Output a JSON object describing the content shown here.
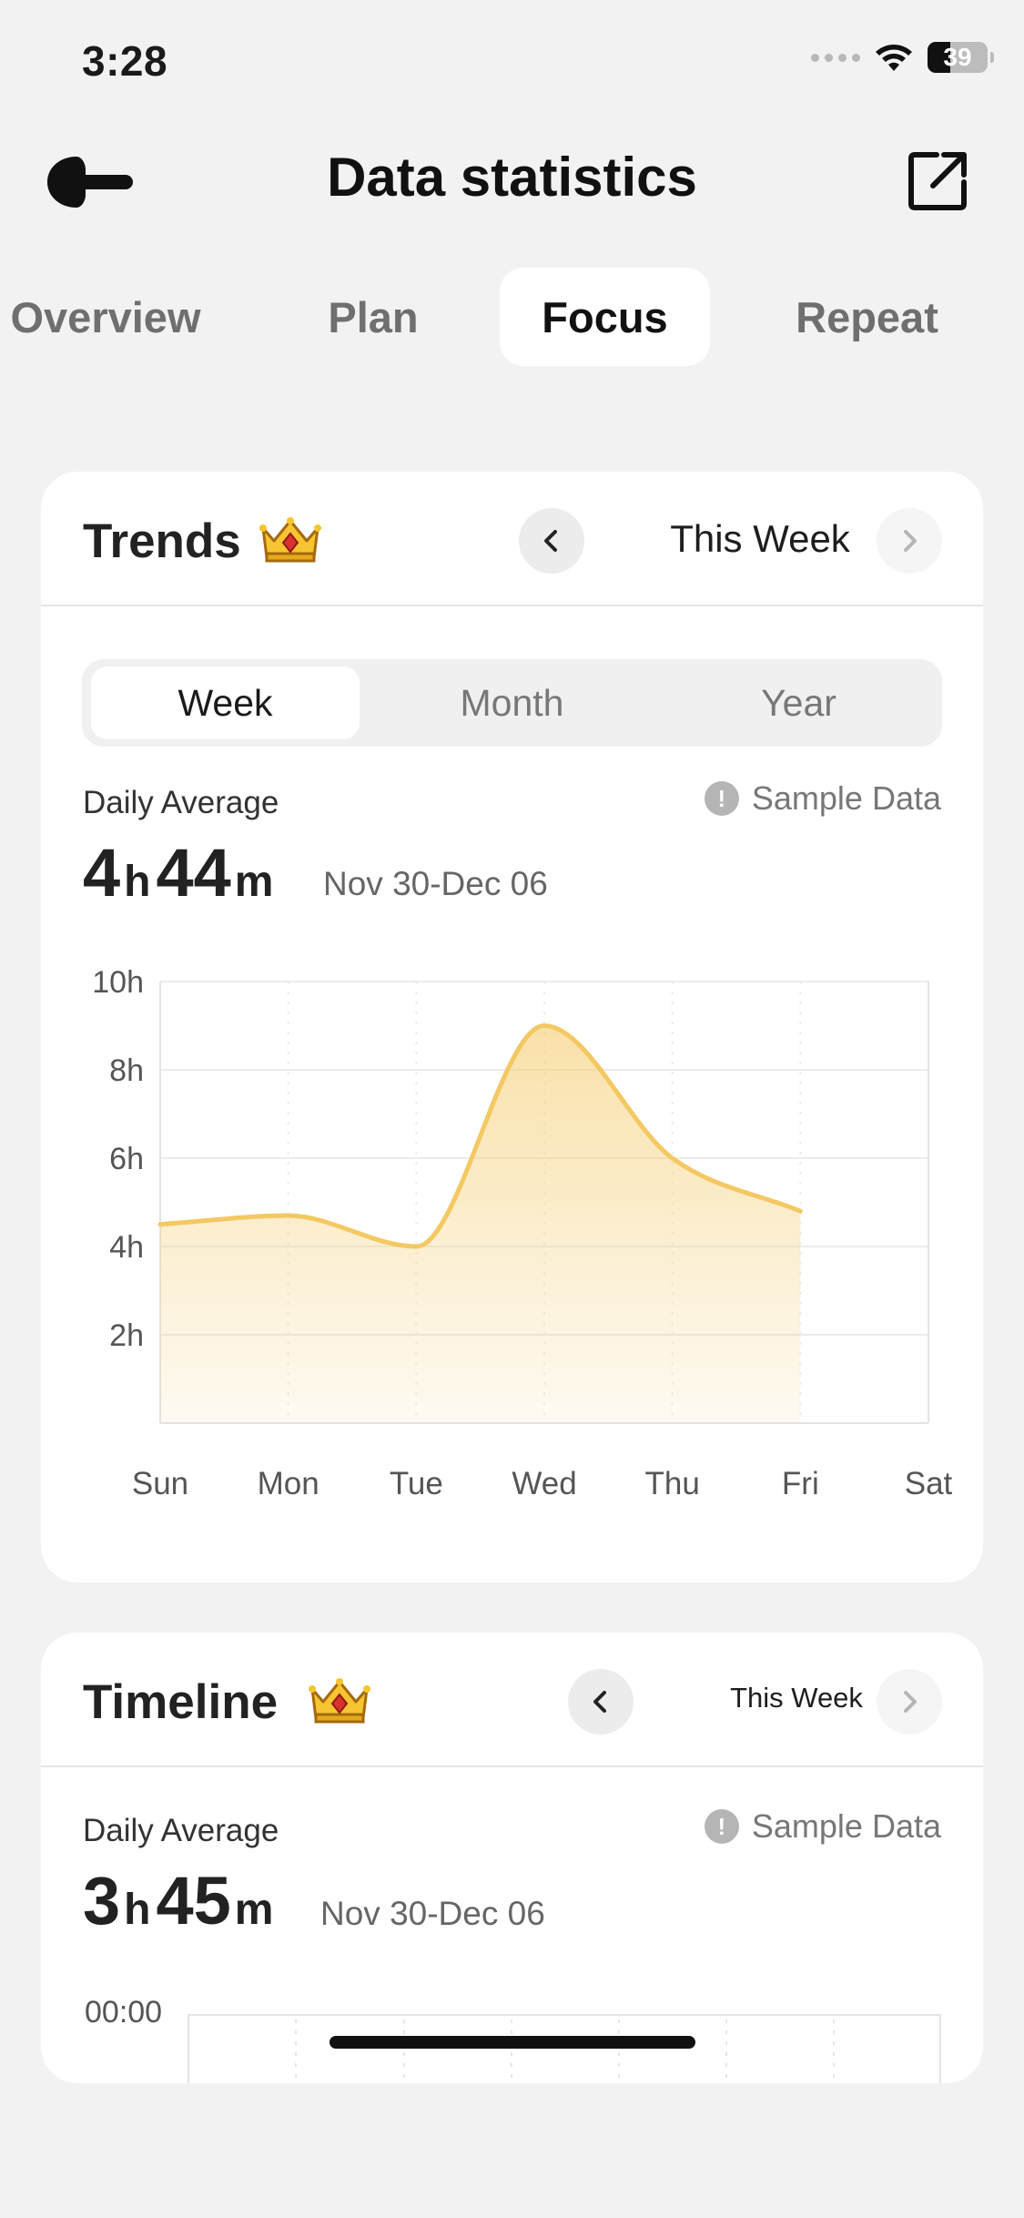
{
  "status_bar": {
    "time": "3:28",
    "battery": "39"
  },
  "nav": {
    "title": "Data statistics",
    "back_icon": "arrow-left-icon",
    "share_icon": "share-external-icon"
  },
  "tabs": [
    {
      "label": "Overview",
      "active": false
    },
    {
      "label": "Plan",
      "active": false
    },
    {
      "label": "Focus",
      "active": true
    },
    {
      "label": "Repeat",
      "active": false
    }
  ],
  "trends": {
    "title": "Trends",
    "badge_icon": "crown-icon",
    "period": "This Week",
    "segments": [
      {
        "label": "Week",
        "active": true
      },
      {
        "label": "Month",
        "active": false
      },
      {
        "label": "Year",
        "active": false
      }
    ],
    "avg_label": "Daily Average",
    "avg_hours": "4",
    "avg_minutes": "44",
    "unit_h": "h",
    "unit_m": "m",
    "date_range": "Nov 30-Dec 06",
    "sample_label": "Sample Data"
  },
  "timeline": {
    "title": "Timeline",
    "badge_icon": "crown-icon",
    "period": "This Week",
    "avg_label": "Daily Average",
    "avg_hours": "3",
    "avg_minutes": "45",
    "unit_h": "h",
    "unit_m": "m",
    "date_range": "Nov 30-Dec 06",
    "sample_label": "Sample Data",
    "first_time_label": "00:00"
  },
  "chart_data": {
    "type": "area",
    "categories": [
      "Sun",
      "Mon",
      "Tue",
      "Wed",
      "Thu",
      "Fri",
      "Sat"
    ],
    "values": [
      4.5,
      4.7,
      4.0,
      9.0,
      6.0,
      4.8,
      null
    ],
    "ylim": [
      0,
      10
    ],
    "yticks": [
      2,
      4,
      6,
      8,
      10
    ],
    "ytick_labels": [
      "2h",
      "4h",
      "6h",
      "8h",
      "10h"
    ],
    "color": "#f4c862",
    "grid": true
  },
  "colors": {
    "accent": "#f4c862",
    "background": "#f2f2f2",
    "card": "#ffffff"
  }
}
